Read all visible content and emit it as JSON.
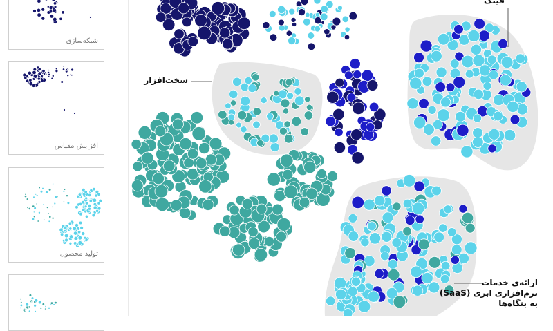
{
  "sidebar": {
    "panels": [
      {
        "label": "شبکه‌سازی"
      },
      {
        "label": "افزایش مقیاس"
      },
      {
        "label": "تولید محصول"
      },
      {
        "label": null
      }
    ]
  },
  "labels": {
    "fintech": "فینک",
    "hardware": "سخت‌افزار",
    "saas": [
      "ارائه‌ی خدمات",
      "نرم‌افزاری ابری (SaaS)",
      "به بنگاه‌ها"
    ]
  }
}
